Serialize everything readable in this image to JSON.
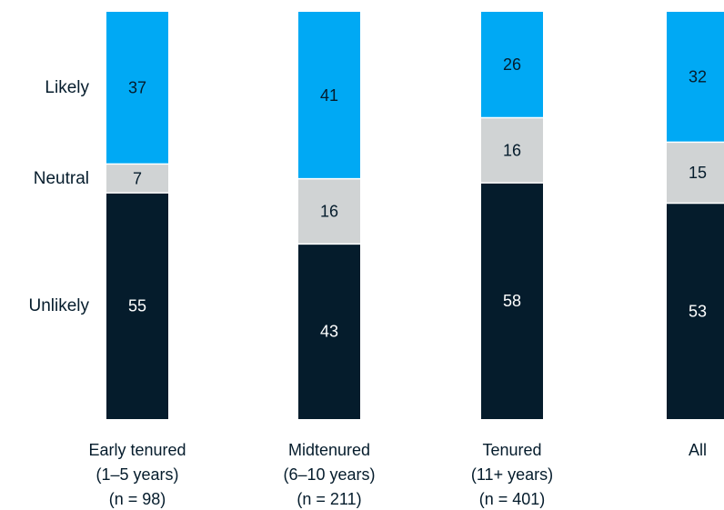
{
  "chart_data": {
    "type": "bar",
    "stacked": true,
    "normalized_percent": true,
    "categories": [
      [
        "Early tenured",
        "(1–5 years)",
        "(n = 98)"
      ],
      [
        "Midtenured",
        "(6–10 years)",
        "(n = 211)"
      ],
      [
        "Tenured",
        "(11+ years)",
        "(n = 401)"
      ],
      [
        "All"
      ]
    ],
    "series": [
      {
        "name": "Likely",
        "values": [
          37,
          41,
          26,
          32
        ]
      },
      {
        "name": "Neutral",
        "values": [
          7,
          16,
          16,
          15
        ]
      },
      {
        "name": "Unlikely",
        "values": [
          55,
          43,
          58,
          53
        ]
      }
    ],
    "row_labels": [
      "Likely",
      "Neutral",
      "Unlikely"
    ],
    "colors": {
      "Likely": "#00a9f4",
      "Neutral": "#d0d3d4",
      "Unlikely": "#051c2c",
      "label_dark": "#051c2c",
      "label_light": "#ffffff"
    },
    "legend": "left, aligned with first bar"
  }
}
